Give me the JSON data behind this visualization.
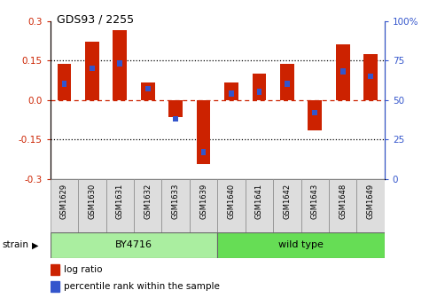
{
  "title": "GDS93 / 2255",
  "samples": [
    "GSM1629",
    "GSM1630",
    "GSM1631",
    "GSM1632",
    "GSM1633",
    "GSM1639",
    "GSM1640",
    "GSM1641",
    "GSM1642",
    "GSM1643",
    "GSM1648",
    "GSM1649"
  ],
  "log_ratio": [
    0.135,
    0.22,
    0.265,
    0.065,
    -0.065,
    -0.245,
    0.065,
    0.1,
    0.135,
    -0.115,
    0.21,
    0.175
  ],
  "percentile": [
    60,
    70,
    73,
    57,
    38,
    17,
    54,
    55,
    60,
    42,
    68,
    65
  ],
  "by4716_count": 6,
  "wild_type_count": 6,
  "strain_label_1": "BY4716",
  "strain_label_2": "wild type",
  "strain_label_left": "strain",
  "ylim": [
    -0.3,
    0.3
  ],
  "yticks_left": [
    -0.3,
    -0.15,
    0.0,
    0.15,
    0.3
  ],
  "yticks_right": [
    0,
    25,
    50,
    75,
    100
  ],
  "red_color": "#cc2200",
  "blue_color": "#3355cc",
  "light_green1": "#aaeea0",
  "light_green2": "#66dd55",
  "bar_width": 0.5,
  "pct_bar_width": 0.18,
  "pct_bar_height": 0.022,
  "bg_color": "#ffffff",
  "light_gray": "#dddddd",
  "legend_red": "log ratio",
  "legend_blue": "percentile rank within the sample"
}
